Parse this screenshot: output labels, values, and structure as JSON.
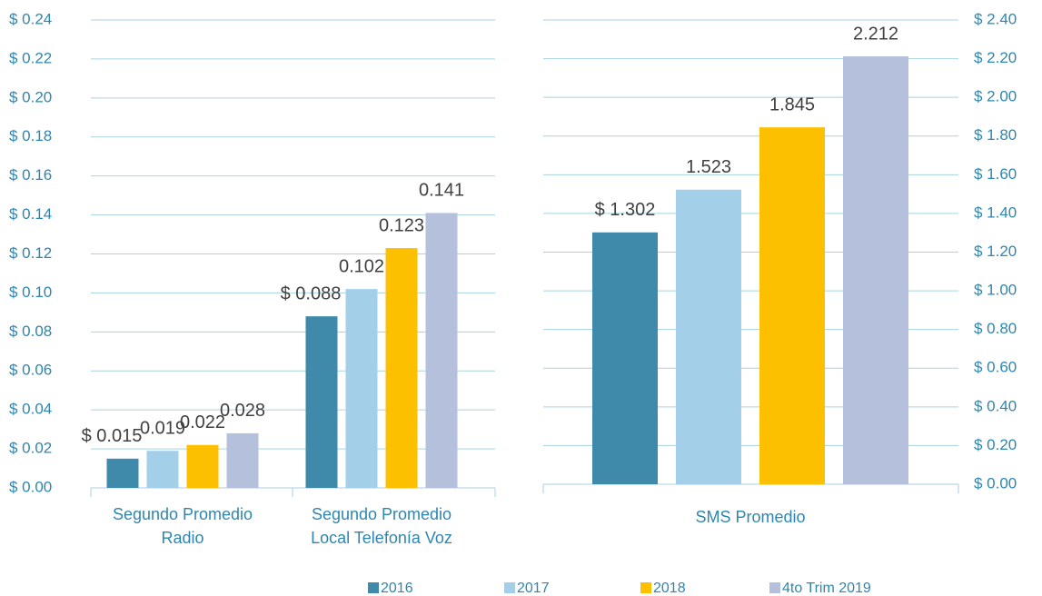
{
  "chart_data": [
    {
      "type": "bar",
      "categories": [
        "Segundo  Promedio Radio",
        "Segundo  Promedio Local Telefonía Voz"
      ],
      "series": [
        {
          "name": "2016",
          "color": "#3f8aab",
          "values": [
            0.015,
            0.088
          ],
          "value_labels": [
            "$ 0.015",
            "$ 0.088"
          ]
        },
        {
          "name": "2017",
          "color": "#a3cfe9",
          "values": [
            0.019,
            0.102
          ]
        },
        {
          "name": "2018",
          "color": "#fdc000",
          "values": [
            0.022,
            0.123
          ]
        },
        {
          "name": "4to Trim 2019",
          "color": "#b4c0dc",
          "values": [
            0.028,
            0.141
          ]
        }
      ],
      "ylim": [
        0,
        0.24
      ],
      "yticks": [
        {
          "value": 0,
          "label": "$ 0.00"
        },
        {
          "value": 0.02,
          "label": "$ 0.02"
        },
        {
          "value": 0.04,
          "label": "$ 0.04"
        },
        {
          "value": 0.06,
          "label": "$ 0.06"
        },
        {
          "value": 0.08,
          "label": "$ 0.08"
        },
        {
          "value": 0.1,
          "label": "$ 0.10"
        },
        {
          "value": 0.12,
          "label": "$ 0.12"
        },
        {
          "value": 0.14,
          "label": "$ 0.14"
        },
        {
          "value": 0.16,
          "label": "$ 0.16"
        },
        {
          "value": 0.18,
          "label": "$ 0.18"
        },
        {
          "value": 0.2,
          "label": "$ 0.20"
        },
        {
          "value": 0.22,
          "label": "$ 0.22"
        },
        {
          "value": 0.24,
          "label": "$ 0.24"
        }
      ],
      "grid": true,
      "legend": "bottom"
    },
    {
      "type": "bar",
      "categories": [
        "SMS Promedio"
      ],
      "series": [
        {
          "color": "#3f8aab",
          "axis": "y2",
          "values": [
            1.302
          ],
          "value_labels": [
            "$ 1.302"
          ]
        },
        {
          "color": "#a3cfe9",
          "axis": "y2",
          "values": [
            1.523
          ]
        },
        {
          "color": "#fdc000",
          "axis": "y2",
          "values": [
            1.845
          ]
        },
        {
          "color": "#b4c0dc",
          "axis": "y2",
          "values": [
            2.212
          ]
        }
      ],
      "y2lim": [
        0,
        2.4
      ],
      "y2ticks": [
        {
          "value": 0,
          "label": "$ 0.00"
        },
        {
          "value": 0.2,
          "label": "$ 0.20"
        },
        {
          "value": 0.4,
          "label": "$ 0.40"
        },
        {
          "value": 0.6,
          "label": "$ 0.60"
        },
        {
          "value": 0.8,
          "label": "$ 0.80"
        },
        {
          "value": 1,
          "label": "$ 1.00"
        },
        {
          "value": 1.2,
          "label": "$ 1.20"
        },
        {
          "value": 1.4,
          "label": "$ 1.40"
        },
        {
          "value": 1.6,
          "label": "$ 1.60"
        },
        {
          "value": 1.8,
          "label": "$ 1.80"
        },
        {
          "value": 2,
          "label": "$ 2.00"
        },
        {
          "value": 2.2,
          "label": "$ 2.20"
        },
        {
          "value": 2.4,
          "label": "$ 2.40"
        }
      ],
      "grid": true
    }
  ]
}
